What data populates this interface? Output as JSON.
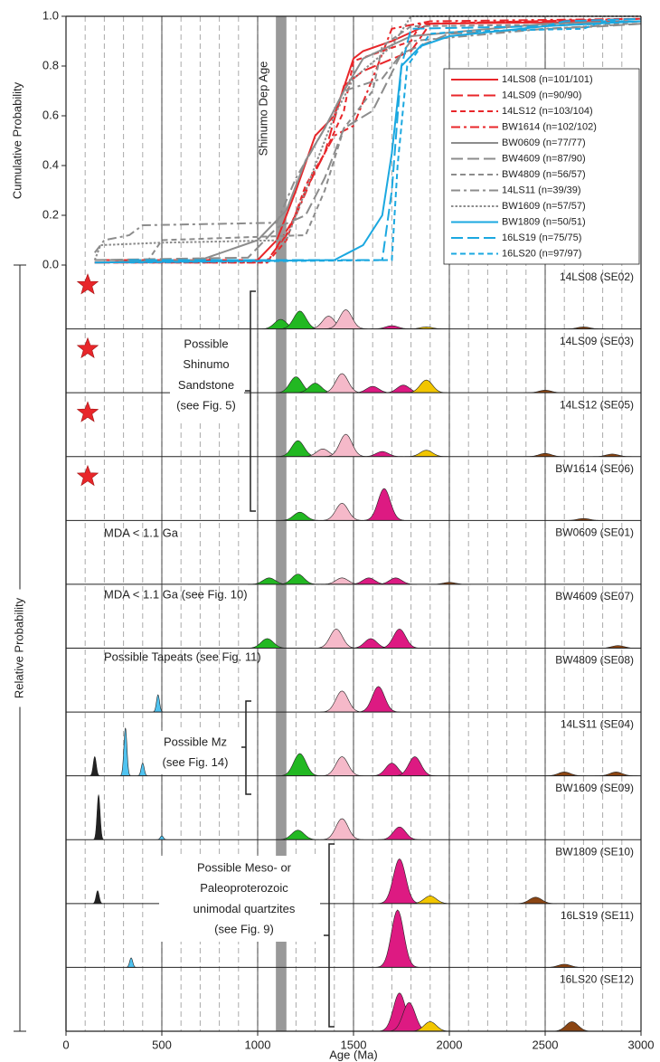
{
  "chart_data": [
    {
      "type": "line",
      "ylabel": "Cumulative Probability",
      "xlim": [
        0,
        3000
      ],
      "ylim": [
        0,
        1
      ],
      "yticks": [
        {
          "value": 0,
          "label": "0.0"
        },
        {
          "value": 0.2,
          "label": "0.2"
        },
        {
          "value": 0.4,
          "label": "0.4"
        },
        {
          "value": 0.6,
          "label": "0.6"
        },
        {
          "value": 0.8,
          "label": "0.8"
        },
        {
          "value": 1,
          "label": "1.0"
        }
      ],
      "legend": "upper right",
      "band": {
        "label": "Shinumo Dep Age",
        "from": 1095,
        "to": 1150,
        "color": "#999999"
      },
      "series": [
        {
          "name": "14LS08 (n=101/101)",
          "color": "#e8262a",
          "dash": "solid",
          "x": [
            150,
            1000,
            1100,
            1200,
            1300,
            1400,
            1500,
            1550,
            1700,
            1900,
            3000
          ],
          "values": [
            0.02,
            0.02,
            0.1,
            0.3,
            0.52,
            0.6,
            0.83,
            0.86,
            0.9,
            0.97,
            0.98
          ]
        },
        {
          "name": "14LS09 (n=90/90)",
          "color": "#e8262a",
          "dash": "longdash",
          "x": [
            150,
            1050,
            1150,
            1250,
            1350,
            1450,
            1550,
            1800,
            1900,
            3000
          ],
          "values": [
            0.01,
            0.02,
            0.12,
            0.3,
            0.45,
            0.72,
            0.78,
            0.86,
            0.97,
            0.99
          ]
        },
        {
          "name": "14LS12 (n=103/104)",
          "color": "#e8262a",
          "dash": "dash",
          "x": [
            150,
            1050,
            1150,
            1250,
            1350,
            1450,
            1500,
            1800,
            1850,
            3000
          ],
          "values": [
            0.01,
            0.01,
            0.1,
            0.32,
            0.45,
            0.62,
            0.82,
            0.9,
            0.97,
            0.99
          ]
        },
        {
          "name": "BW1614 (n=102/102)",
          "color": "#e8262a",
          "dash": "dashdot",
          "x": [
            150,
            1050,
            1200,
            1300,
            1400,
            1500,
            1600,
            1700,
            1900,
            3000
          ],
          "values": [
            0.01,
            0.01,
            0.2,
            0.38,
            0.52,
            0.56,
            0.75,
            0.95,
            0.98,
            0.99
          ]
        },
        {
          "name": "BW0609 (n=77/77)",
          "color": "#8c8c8c",
          "dash": "solid",
          "x": [
            150,
            700,
            1000,
            1150,
            1250,
            1350,
            1450,
            1550,
            1800,
            2500,
            3000
          ],
          "values": [
            0.01,
            0.02,
            0.1,
            0.22,
            0.42,
            0.55,
            0.7,
            0.83,
            0.92,
            0.97,
            0.98
          ]
        },
        {
          "name": "BW4609 (n=87/90)",
          "color": "#8c8c8c",
          "dash": "longdash",
          "x": [
            150,
            950,
            1100,
            1250,
            1350,
            1450,
            1600,
            1750,
            2000,
            2800,
            3000
          ],
          "values": [
            0.02,
            0.03,
            0.15,
            0.2,
            0.35,
            0.55,
            0.62,
            0.85,
            0.93,
            0.96,
            0.97
          ]
        },
        {
          "name": "BW4809 (n=56/57)",
          "color": "#8c8c8c",
          "dash": "dash",
          "x": [
            180,
            430,
            500,
            1250,
            1350,
            1450,
            1600,
            1650,
            1800,
            3000
          ],
          "values": [
            0.02,
            0.02,
            0.1,
            0.12,
            0.3,
            0.55,
            0.7,
            0.88,
            0.96,
            0.97
          ]
        },
        {
          "name": "14LS11 (n=39/39)",
          "color": "#8c8c8c",
          "dash": "dashdot",
          "x": [
            150,
            200,
            330,
            400,
            1100,
            1200,
            1350,
            1450,
            1650,
            1800,
            2500,
            3000
          ],
          "values": [
            0.05,
            0.1,
            0.12,
            0.16,
            0.17,
            0.35,
            0.55,
            0.7,
            0.75,
            0.9,
            0.95,
            0.97
          ]
        },
        {
          "name": "BW1609 (n=57/57)",
          "color": "#8c8c8c",
          "dash": "dot",
          "x": [
            150,
            180,
            500,
            1150,
            1250,
            1400,
            1500,
            1700,
            1800,
            3000
          ],
          "values": [
            0.02,
            0.08,
            0.09,
            0.1,
            0.3,
            0.6,
            0.75,
            0.88,
            1.0,
            1.0
          ]
        },
        {
          "name": "BW1809 (n=50/51)",
          "color": "#1ba8e0",
          "dash": "solid",
          "x": [
            150,
            1400,
            1550,
            1650,
            1700,
            1750,
            1850,
            2000,
            2500,
            3000
          ],
          "values": [
            0.01,
            0.02,
            0.08,
            0.2,
            0.45,
            0.8,
            0.88,
            0.92,
            0.96,
            0.98
          ]
        },
        {
          "name": "16LS19 (n=75/75)",
          "color": "#1ba8e0",
          "dash": "longdash",
          "x": [
            330,
            1650,
            1700,
            1750,
            1800,
            2500,
            2600,
            3000
          ],
          "values": [
            0.02,
            0.02,
            0.3,
            0.8,
            0.95,
            0.96,
            0.98,
            0.99
          ]
        },
        {
          "name": "16LS20 (n=97/97)",
          "color": "#1ba8e0",
          "dash": "dash",
          "x": [
            330,
            1700,
            1730,
            1780,
            1900,
            2100,
            2700,
            2800,
            3000
          ],
          "values": [
            0.01,
            0.02,
            0.4,
            0.8,
            0.93,
            0.94,
            0.95,
            0.98,
            0.98
          ]
        }
      ]
    },
    {
      "type": "kde",
      "ylabel": "Relative Probability",
      "xlabel": "Age (Ma)",
      "xlim": [
        0,
        3000
      ],
      "xticks": [
        0,
        500,
        1000,
        1500,
        2000,
        2500,
        3000
      ],
      "panels": [
        {
          "name": "14LS08 (SE02)",
          "peaks": [
            {
              "x": 1120,
              "y": 0.15,
              "color": "#22b822"
            },
            {
              "x": 1220,
              "y": 0.28,
              "color": "#22b822"
            },
            {
              "x": 1370,
              "y": 0.2,
              "color": "#f5b9c9"
            },
            {
              "x": 1460,
              "y": 0.3,
              "color": "#f5b9c9"
            },
            {
              "x": 1700,
              "y": 0.05,
              "color": "#dd1a82"
            },
            {
              "x": 1880,
              "y": 0.03,
              "color": "#f2c600"
            },
            {
              "x": 2700,
              "y": 0.03,
              "color": "#8b4513"
            }
          ]
        },
        {
          "name": "14LS09 (SE03)",
          "peaks": [
            {
              "x": 1200,
              "y": 0.25,
              "color": "#22b822"
            },
            {
              "x": 1300,
              "y": 0.15,
              "color": "#22b822"
            },
            {
              "x": 1440,
              "y": 0.3,
              "color": "#f5b9c9"
            },
            {
              "x": 1600,
              "y": 0.1,
              "color": "#dd1a82"
            },
            {
              "x": 1760,
              "y": 0.12,
              "color": "#dd1a82"
            },
            {
              "x": 1880,
              "y": 0.2,
              "color": "#f2c600"
            },
            {
              "x": 2500,
              "y": 0.04,
              "color": "#8b4513"
            }
          ]
        },
        {
          "name": "14LS12 (SE05)",
          "peaks": [
            {
              "x": 1210,
              "y": 0.25,
              "color": "#22b822"
            },
            {
              "x": 1340,
              "y": 0.12,
              "color": "#f5b9c9"
            },
            {
              "x": 1460,
              "y": 0.35,
              "color": "#f5b9c9"
            },
            {
              "x": 1650,
              "y": 0.08,
              "color": "#dd1a82"
            },
            {
              "x": 1880,
              "y": 0.1,
              "color": "#f2c600"
            },
            {
              "x": 2500,
              "y": 0.05,
              "color": "#8b4513"
            },
            {
              "x": 2850,
              "y": 0.04,
              "color": "#8b4513"
            }
          ]
        },
        {
          "name": "BW1614 (SE06)",
          "peaks": [
            {
              "x": 1220,
              "y": 0.13,
              "color": "#22b822"
            },
            {
              "x": 1440,
              "y": 0.27,
              "color": "#f5b9c9"
            },
            {
              "x": 1660,
              "y": 0.5,
              "color": "#dd1a82"
            },
            {
              "x": 2700,
              "y": 0.03,
              "color": "#8b4513"
            }
          ]
        },
        {
          "name": "BW0609 (SE01)",
          "peaks": [
            {
              "x": 1060,
              "y": 0.1,
              "color": "#22b822"
            },
            {
              "x": 1210,
              "y": 0.16,
              "color": "#22b822"
            },
            {
              "x": 1440,
              "y": 0.1,
              "color": "#f5b9c9"
            },
            {
              "x": 1580,
              "y": 0.1,
              "color": "#dd1a82"
            },
            {
              "x": 1720,
              "y": 0.1,
              "color": "#dd1a82"
            },
            {
              "x": 2000,
              "y": 0.03,
              "color": "#8b4513"
            }
          ]
        },
        {
          "name": "BW4609 (SE07)",
          "peaks": [
            {
              "x": 1050,
              "y": 0.15,
              "color": "#22b822"
            },
            {
              "x": 1410,
              "y": 0.3,
              "color": "#f5b9c9"
            },
            {
              "x": 1590,
              "y": 0.15,
              "color": "#dd1a82"
            },
            {
              "x": 1740,
              "y": 0.3,
              "color": "#dd1a82"
            },
            {
              "x": 2880,
              "y": 0.04,
              "color": "#8b4513"
            }
          ]
        },
        {
          "name": "BW4809 (SE08)",
          "peaks": [
            {
              "x": 480,
              "y": 0.27,
              "color": "#4fc3f0"
            },
            {
              "x": 1440,
              "y": 0.33,
              "color": "#f5b9c9"
            },
            {
              "x": 1630,
              "y": 0.4,
              "color": "#dd1a82"
            }
          ]
        },
        {
          "name": "14LS11 (SE04)",
          "peaks": [
            {
              "x": 150,
              "y": 0.3,
              "color": "#222222"
            },
            {
              "x": 310,
              "y": 0.75,
              "color": "#4fc3f0"
            },
            {
              "x": 400,
              "y": 0.2,
              "color": "#4fc3f0"
            },
            {
              "x": 1220,
              "y": 0.35,
              "color": "#22b822"
            },
            {
              "x": 1440,
              "y": 0.3,
              "color": "#f5b9c9"
            },
            {
              "x": 1700,
              "y": 0.2,
              "color": "#dd1a82"
            },
            {
              "x": 1820,
              "y": 0.3,
              "color": "#dd1a82"
            },
            {
              "x": 2600,
              "y": 0.06,
              "color": "#8b4513"
            },
            {
              "x": 2870,
              "y": 0.06,
              "color": "#8b4513"
            }
          ]
        },
        {
          "name": "BW1609 (SE09)",
          "peaks": [
            {
              "x": 170,
              "y": 0.7,
              "color": "#222222"
            },
            {
              "x": 500,
              "y": 0.06,
              "color": "#4fc3f0"
            },
            {
              "x": 1210,
              "y": 0.15,
              "color": "#22b822"
            },
            {
              "x": 1440,
              "y": 0.33,
              "color": "#f5b9c9"
            },
            {
              "x": 1740,
              "y": 0.2,
              "color": "#dd1a82"
            }
          ]
        },
        {
          "name": "BW1809 (SE10)",
          "peaks": [
            {
              "x": 165,
              "y": 0.2,
              "color": "#222222"
            },
            {
              "x": 1740,
              "y": 0.7,
              "color": "#dd1a82"
            },
            {
              "x": 1900,
              "y": 0.12,
              "color": "#f2c600"
            },
            {
              "x": 2450,
              "y": 0.1,
              "color": "#8b4513"
            }
          ]
        },
        {
          "name": "16LS19 (SE11)",
          "peaks": [
            {
              "x": 340,
              "y": 0.15,
              "color": "#4fc3f0"
            },
            {
              "x": 1730,
              "y": 0.9,
              "color": "#dd1a82"
            },
            {
              "x": 2600,
              "y": 0.05,
              "color": "#8b4513"
            }
          ]
        },
        {
          "name": "16LS20 (SE12)",
          "peaks": [
            {
              "x": 1740,
              "y": 0.6,
              "color": "#dd1a82"
            },
            {
              "x": 1790,
              "y": 0.45,
              "color": "#dd1a82"
            },
            {
              "x": 1900,
              "y": 0.15,
              "color": "#f2c600"
            },
            {
              "x": 2640,
              "y": 0.15,
              "color": "#8b4513"
            }
          ]
        }
      ],
      "annotations": [
        {
          "lines": [
            "Possible",
            "Shinumo",
            "Sandstone",
            "(see Fig. 5)"
          ]
        },
        {
          "lines": [
            "MDA < 1.1 Ga"
          ]
        },
        {
          "lines": [
            "MDA < 1.1 Ga (see Fig. 10)"
          ]
        },
        {
          "lines": [
            "Possible Tapeats (see Fig. 11)"
          ]
        },
        {
          "lines": [
            "Possible Mz",
            "(see Fig. 14)"
          ]
        },
        {
          "lines": [
            "Possible Meso- or",
            "Paleoproterozoic",
            "unimodal quartzites",
            "(see Fig. 9)"
          ]
        }
      ]
    }
  ]
}
